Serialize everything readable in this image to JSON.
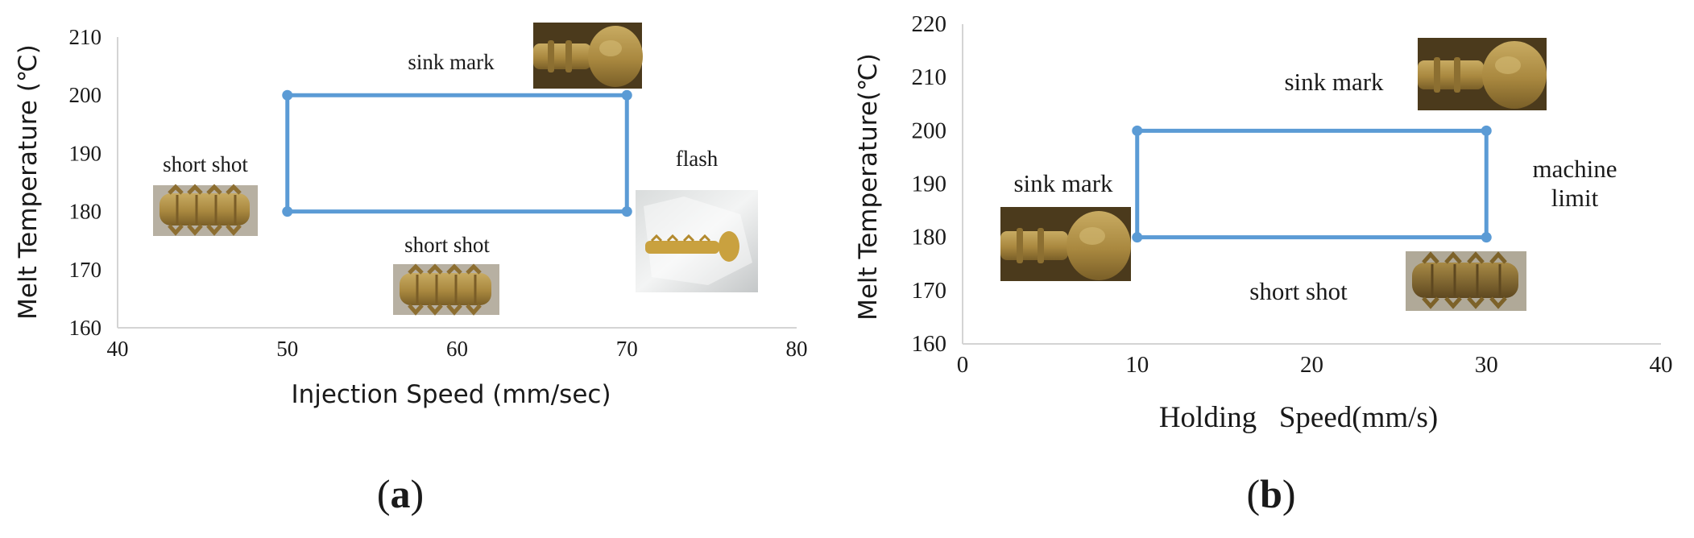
{
  "chart_data": [
    {
      "type": "line",
      "panel_label": {
        "open": "(",
        "letter": "a",
        "close": ")"
      },
      "xlabel": "Injection Speed (mm/sec)",
      "ylabel": "Melt Temperature (℃)",
      "xlim": [
        40,
        80
      ],
      "ylim": [
        160,
        210
      ],
      "x_ticks": [
        "40",
        "50",
        "60",
        "70",
        "80"
      ],
      "y_ticks": [
        "160",
        "170",
        "180",
        "190",
        "200",
        "210"
      ],
      "series": [
        {
          "color": "#5b9bd5",
          "points": [
            {
              "x": 50,
              "y": 200
            },
            {
              "x": 70,
              "y": 200
            },
            {
              "x": 70,
              "y": 180
            },
            {
              "x": 50,
              "y": 180
            },
            {
              "x": 50,
              "y": 200
            }
          ]
        }
      ],
      "annotations": [
        {
          "text": "sink mark",
          "image": "sink-mark-photo",
          "x": 60,
          "y": 206
        },
        {
          "text": "short shot",
          "image": "short-shot-photo",
          "x": 45,
          "y": 190
        },
        {
          "text": "short shot",
          "image": "short-shot-photo",
          "x": 60,
          "y": 175
        },
        {
          "text": "flash",
          "image": "flash-photo",
          "x": 74,
          "y": 189
        }
      ],
      "grid": false,
      "legend": "none"
    },
    {
      "type": "line",
      "panel_label": {
        "open": "(",
        "letter": "b",
        "close": ")"
      },
      "xlabel": "Holding   Speed(mm/s)",
      "ylabel": "Melt Temperature(℃)",
      "xlim": [
        0,
        40
      ],
      "ylim": [
        160,
        220
      ],
      "x_ticks": [
        "0",
        "10",
        "20",
        "30",
        "40"
      ],
      "y_ticks": [
        "160",
        "170",
        "180",
        "190",
        "200",
        "210",
        "220"
      ],
      "series": [
        {
          "color": "#5b9bd5",
          "points": [
            {
              "x": 10,
              "y": 200
            },
            {
              "x": 30,
              "y": 200
            },
            {
              "x": 30,
              "y": 180
            },
            {
              "x": 10,
              "y": 180
            },
            {
              "x": 10,
              "y": 200
            }
          ]
        }
      ],
      "annotations": [
        {
          "text": "sink mark",
          "image": "sink-mark-photo",
          "x": 20,
          "y": 208
        },
        {
          "text": "sink mark",
          "image": "sink-mark-photo",
          "x": 5,
          "y": 189
        },
        {
          "text": "machine",
          "text2": "limit",
          "x": 35,
          "y": 190
        },
        {
          "text": "short shot",
          "image": "short-shot-photo",
          "x": 20,
          "y": 170
        }
      ],
      "grid": false,
      "legend": "none"
    }
  ]
}
